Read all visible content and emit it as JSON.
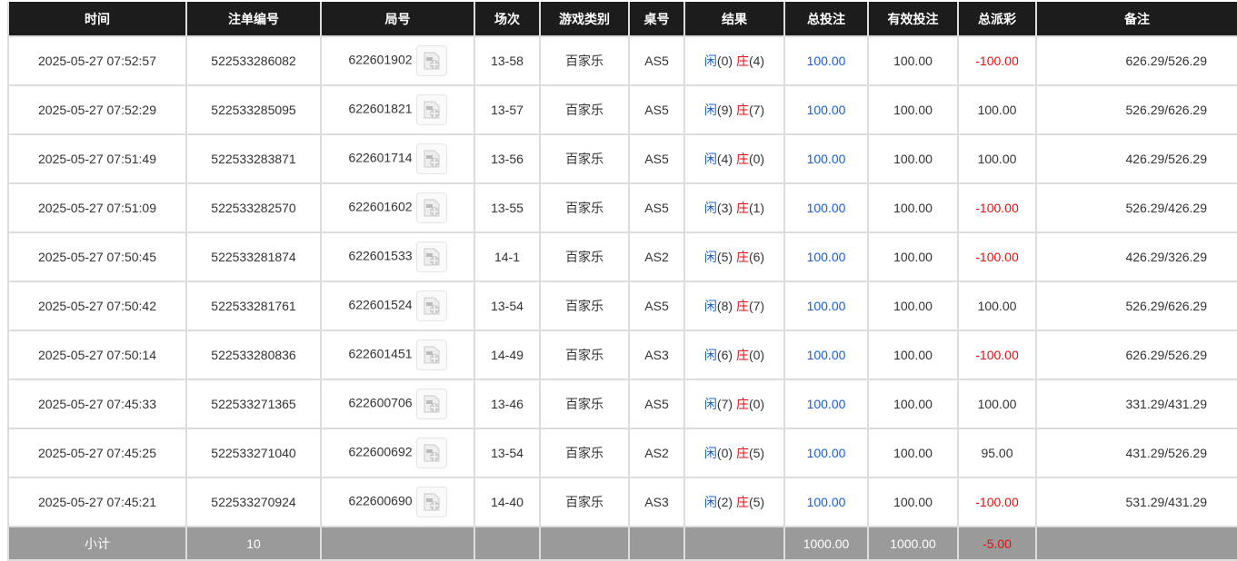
{
  "headers": [
    "时间",
    "注单编号",
    "局号",
    "场次",
    "游戏类别",
    "桌号",
    "结果",
    "总投注",
    "有效投注",
    "总派彩",
    "备注"
  ],
  "colors": {
    "header_bg": "#1c1c1c",
    "player": "#1a5fd1",
    "banker": "#e01010",
    "loss": "#e01010",
    "footer_bg": "#9a9a9a"
  },
  "rows": [
    {
      "time": "2025-05-27 07:52:57",
      "bet_id": "522533286082",
      "round": "622601902",
      "shoe": "13-58",
      "game": "百家乐",
      "table": "AS5",
      "p": "闲",
      "pv": "(0)",
      "b": "庄",
      "bv": "(4)",
      "total": "100.00",
      "valid": "100.00",
      "payout": "-100.00",
      "neg": true,
      "remark": "626.29/526.29"
    },
    {
      "time": "2025-05-27 07:52:29",
      "bet_id": "522533285095",
      "round": "622601821",
      "shoe": "13-57",
      "game": "百家乐",
      "table": "AS5",
      "p": "闲",
      "pv": "(9)",
      "b": "庄",
      "bv": "(7)",
      "total": "100.00",
      "valid": "100.00",
      "payout": "100.00",
      "neg": false,
      "remark": "526.29/626.29"
    },
    {
      "time": "2025-05-27 07:51:49",
      "bet_id": "522533283871",
      "round": "622601714",
      "shoe": "13-56",
      "game": "百家乐",
      "table": "AS5",
      "p": "闲",
      "pv": "(4)",
      "b": "庄",
      "bv": "(0)",
      "total": "100.00",
      "valid": "100.00",
      "payout": "100.00",
      "neg": false,
      "remark": "426.29/526.29"
    },
    {
      "time": "2025-05-27 07:51:09",
      "bet_id": "522533282570",
      "round": "622601602",
      "shoe": "13-55",
      "game": "百家乐",
      "table": "AS5",
      "p": "闲",
      "pv": "(3)",
      "b": "庄",
      "bv": "(1)",
      "total": "100.00",
      "valid": "100.00",
      "payout": "-100.00",
      "neg": true,
      "remark": "526.29/426.29"
    },
    {
      "time": "2025-05-27 07:50:45",
      "bet_id": "522533281874",
      "round": "622601533",
      "shoe": "14-1",
      "game": "百家乐",
      "table": "AS2",
      "p": "闲",
      "pv": "(5)",
      "b": "庄",
      "bv": "(6)",
      "total": "100.00",
      "valid": "100.00",
      "payout": "-100.00",
      "neg": true,
      "remark": "426.29/326.29"
    },
    {
      "time": "2025-05-27 07:50:42",
      "bet_id": "522533281761",
      "round": "622601524",
      "shoe": "13-54",
      "game": "百家乐",
      "table": "AS5",
      "p": "闲",
      "pv": "(8)",
      "b": "庄",
      "bv": "(7)",
      "total": "100.00",
      "valid": "100.00",
      "payout": "100.00",
      "neg": false,
      "remark": "526.29/626.29"
    },
    {
      "time": "2025-05-27 07:50:14",
      "bet_id": "522533280836",
      "round": "622601451",
      "shoe": "14-49",
      "game": "百家乐",
      "table": "AS3",
      "p": "闲",
      "pv": "(6)",
      "b": "庄",
      "bv": "(0)",
      "total": "100.00",
      "valid": "100.00",
      "payout": "-100.00",
      "neg": true,
      "remark": "626.29/526.29"
    },
    {
      "time": "2025-05-27 07:45:33",
      "bet_id": "522533271365",
      "round": "622600706",
      "shoe": "13-46",
      "game": "百家乐",
      "table": "AS5",
      "p": "闲",
      "pv": "(7)",
      "b": "庄",
      "bv": "(0)",
      "total": "100.00",
      "valid": "100.00",
      "payout": "100.00",
      "neg": false,
      "remark": "331.29/431.29"
    },
    {
      "time": "2025-05-27 07:45:25",
      "bet_id": "522533271040",
      "round": "622600692",
      "shoe": "13-54",
      "game": "百家乐",
      "table": "AS2",
      "p": "闲",
      "pv": "(0)",
      "b": "庄",
      "bv": "(5)",
      "total": "100.00",
      "valid": "100.00",
      "payout": "95.00",
      "neg": false,
      "remark": "431.29/526.29"
    },
    {
      "time": "2025-05-27 07:45:21",
      "bet_id": "522533270924",
      "round": "622600690",
      "shoe": "14-40",
      "game": "百家乐",
      "table": "AS3",
      "p": "闲",
      "pv": "(2)",
      "b": "庄",
      "bv": "(5)",
      "total": "100.00",
      "valid": "100.00",
      "payout": "-100.00",
      "neg": true,
      "remark": "531.29/431.29"
    }
  ],
  "footer": {
    "label": "小计",
    "count": "10",
    "total": "1000.00",
    "valid": "1000.00",
    "payout": "-5.00"
  }
}
